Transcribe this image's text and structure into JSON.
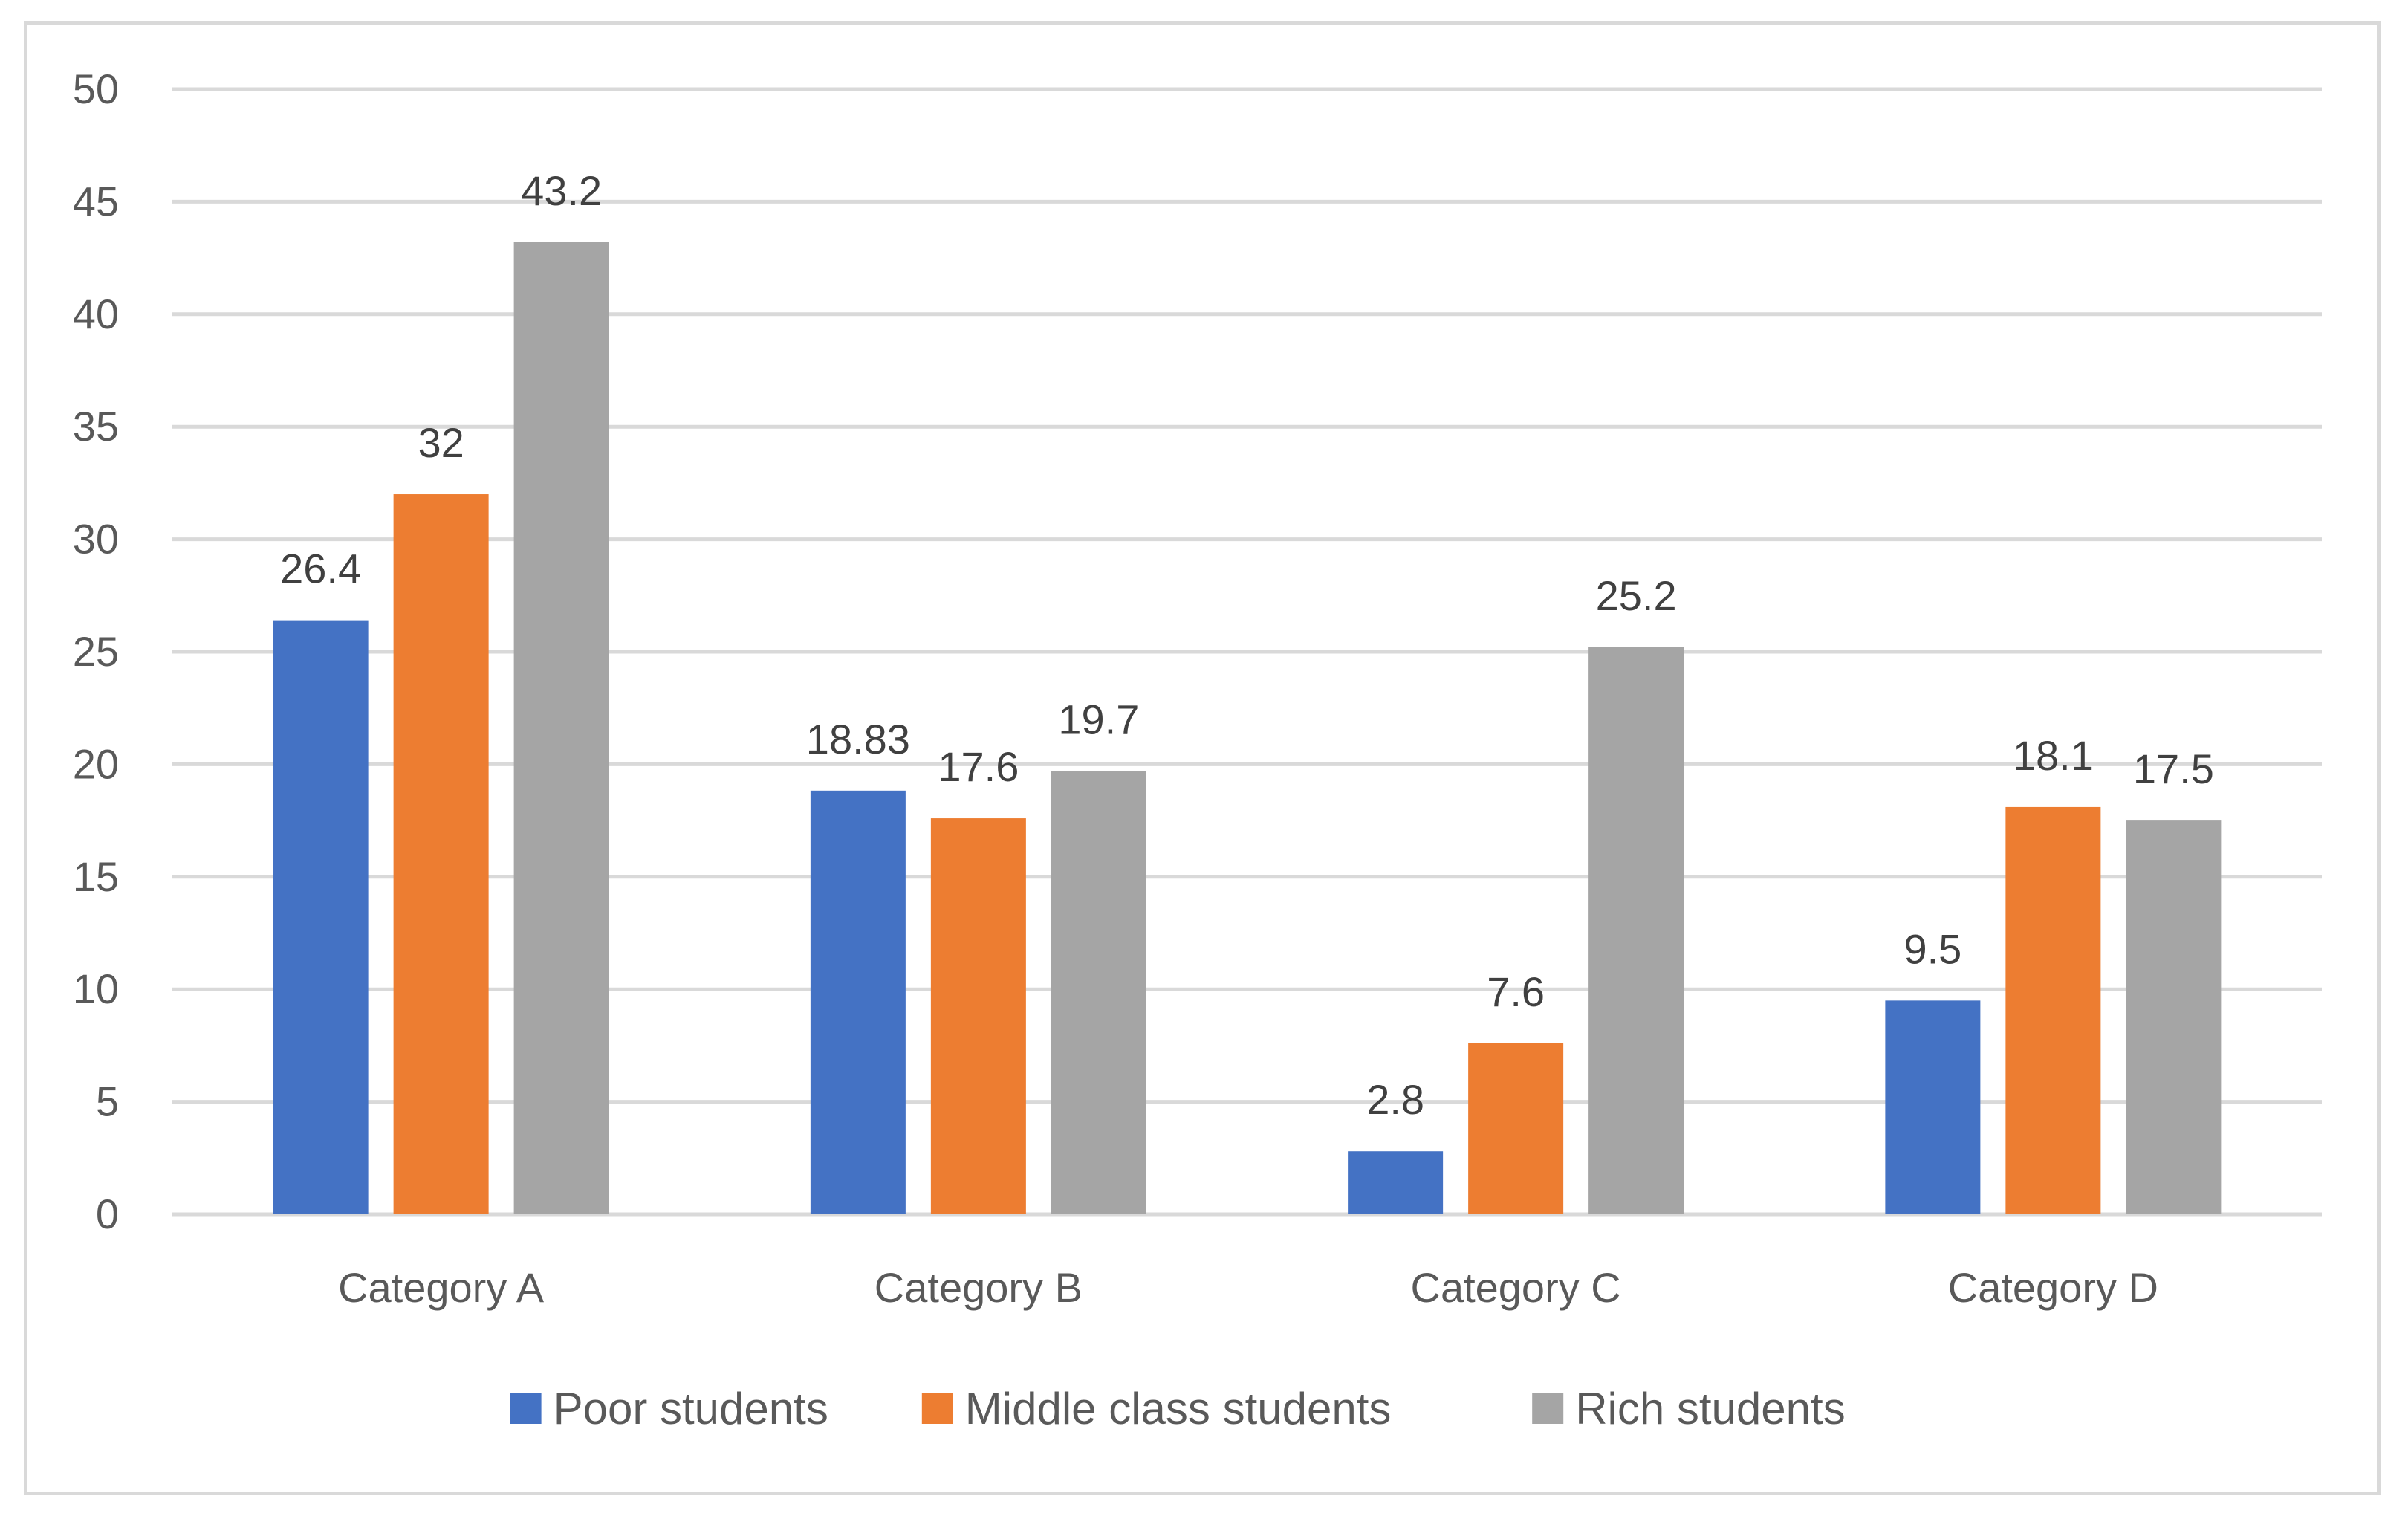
{
  "chart_data": {
    "type": "bar",
    "title": "",
    "xlabel": "",
    "ylabel": "",
    "categories": [
      "Category A",
      "Category B",
      "Category C",
      "Category D"
    ],
    "series": [
      {
        "name": "Poor students",
        "color": "#4472c4",
        "values": [
          26.4,
          18.83,
          2.8,
          9.5
        ],
        "labels": [
          "26.4",
          "18.83",
          "2.8",
          "9.5"
        ]
      },
      {
        "name": "Middle class students",
        "color": "#ed7d31",
        "values": [
          32,
          17.6,
          7.6,
          18.1
        ],
        "labels": [
          "32",
          "17.6",
          "7.6",
          "18.1"
        ]
      },
      {
        "name": "Rich students",
        "color": "#a5a5a5",
        "values": [
          43.2,
          19.7,
          25.2,
          17.5
        ],
        "labels": [
          "43.2",
          "19.7",
          "25.2",
          "17.5"
        ]
      }
    ],
    "ylim": [
      0,
      50
    ],
    "yticks": [
      "0",
      "5",
      "10",
      "15",
      "20",
      "25",
      "30",
      "35",
      "40",
      "45",
      "50"
    ],
    "grid": true,
    "legend_position": "bottom"
  }
}
